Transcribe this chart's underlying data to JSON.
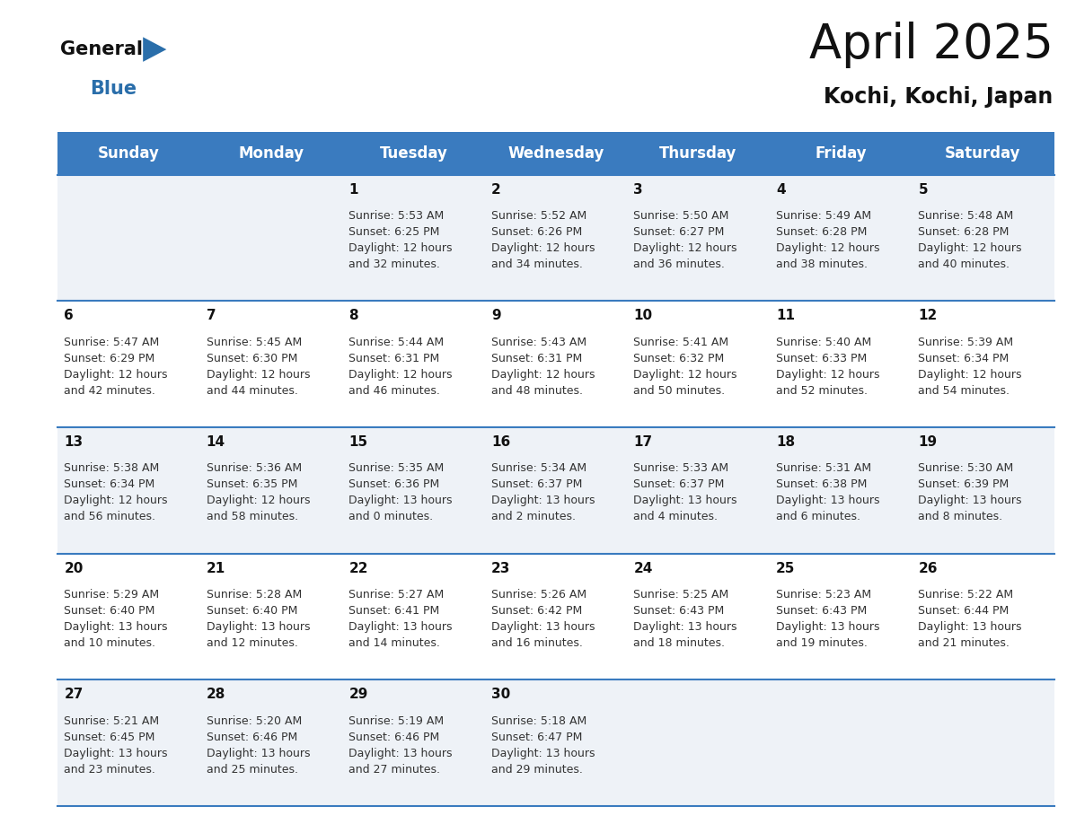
{
  "title": "April 2025",
  "subtitle": "Kochi, Kochi, Japan",
  "header_bg_color": "#3a7bbf",
  "header_text_color": "#ffffff",
  "cell_bg_row0": "#eef2f7",
  "cell_bg_row1": "#ffffff",
  "cell_bg_row2": "#eef2f7",
  "cell_bg_row3": "#ffffff",
  "cell_bg_row4": "#eef2f7",
  "row_line_color": "#3a7bbf",
  "day_headers": [
    "Sunday",
    "Monday",
    "Tuesday",
    "Wednesday",
    "Thursday",
    "Friday",
    "Saturday"
  ],
  "calendar_data": [
    [
      {
        "day": null,
        "info": null
      },
      {
        "day": null,
        "info": null
      },
      {
        "day": "1",
        "info": "Sunrise: 5:53 AM\nSunset: 6:25 PM\nDaylight: 12 hours\nand 32 minutes."
      },
      {
        "day": "2",
        "info": "Sunrise: 5:52 AM\nSunset: 6:26 PM\nDaylight: 12 hours\nand 34 minutes."
      },
      {
        "day": "3",
        "info": "Sunrise: 5:50 AM\nSunset: 6:27 PM\nDaylight: 12 hours\nand 36 minutes."
      },
      {
        "day": "4",
        "info": "Sunrise: 5:49 AM\nSunset: 6:28 PM\nDaylight: 12 hours\nand 38 minutes."
      },
      {
        "day": "5",
        "info": "Sunrise: 5:48 AM\nSunset: 6:28 PM\nDaylight: 12 hours\nand 40 minutes."
      }
    ],
    [
      {
        "day": "6",
        "info": "Sunrise: 5:47 AM\nSunset: 6:29 PM\nDaylight: 12 hours\nand 42 minutes."
      },
      {
        "day": "7",
        "info": "Sunrise: 5:45 AM\nSunset: 6:30 PM\nDaylight: 12 hours\nand 44 minutes."
      },
      {
        "day": "8",
        "info": "Sunrise: 5:44 AM\nSunset: 6:31 PM\nDaylight: 12 hours\nand 46 minutes."
      },
      {
        "day": "9",
        "info": "Sunrise: 5:43 AM\nSunset: 6:31 PM\nDaylight: 12 hours\nand 48 minutes."
      },
      {
        "day": "10",
        "info": "Sunrise: 5:41 AM\nSunset: 6:32 PM\nDaylight: 12 hours\nand 50 minutes."
      },
      {
        "day": "11",
        "info": "Sunrise: 5:40 AM\nSunset: 6:33 PM\nDaylight: 12 hours\nand 52 minutes."
      },
      {
        "day": "12",
        "info": "Sunrise: 5:39 AM\nSunset: 6:34 PM\nDaylight: 12 hours\nand 54 minutes."
      }
    ],
    [
      {
        "day": "13",
        "info": "Sunrise: 5:38 AM\nSunset: 6:34 PM\nDaylight: 12 hours\nand 56 minutes."
      },
      {
        "day": "14",
        "info": "Sunrise: 5:36 AM\nSunset: 6:35 PM\nDaylight: 12 hours\nand 58 minutes."
      },
      {
        "day": "15",
        "info": "Sunrise: 5:35 AM\nSunset: 6:36 PM\nDaylight: 13 hours\nand 0 minutes."
      },
      {
        "day": "16",
        "info": "Sunrise: 5:34 AM\nSunset: 6:37 PM\nDaylight: 13 hours\nand 2 minutes."
      },
      {
        "day": "17",
        "info": "Sunrise: 5:33 AM\nSunset: 6:37 PM\nDaylight: 13 hours\nand 4 minutes."
      },
      {
        "day": "18",
        "info": "Sunrise: 5:31 AM\nSunset: 6:38 PM\nDaylight: 13 hours\nand 6 minutes."
      },
      {
        "day": "19",
        "info": "Sunrise: 5:30 AM\nSunset: 6:39 PM\nDaylight: 13 hours\nand 8 minutes."
      }
    ],
    [
      {
        "day": "20",
        "info": "Sunrise: 5:29 AM\nSunset: 6:40 PM\nDaylight: 13 hours\nand 10 minutes."
      },
      {
        "day": "21",
        "info": "Sunrise: 5:28 AM\nSunset: 6:40 PM\nDaylight: 13 hours\nand 12 minutes."
      },
      {
        "day": "22",
        "info": "Sunrise: 5:27 AM\nSunset: 6:41 PM\nDaylight: 13 hours\nand 14 minutes."
      },
      {
        "day": "23",
        "info": "Sunrise: 5:26 AM\nSunset: 6:42 PM\nDaylight: 13 hours\nand 16 minutes."
      },
      {
        "day": "24",
        "info": "Sunrise: 5:25 AM\nSunset: 6:43 PM\nDaylight: 13 hours\nand 18 minutes."
      },
      {
        "day": "25",
        "info": "Sunrise: 5:23 AM\nSunset: 6:43 PM\nDaylight: 13 hours\nand 19 minutes."
      },
      {
        "day": "26",
        "info": "Sunrise: 5:22 AM\nSunset: 6:44 PM\nDaylight: 13 hours\nand 21 minutes."
      }
    ],
    [
      {
        "day": "27",
        "info": "Sunrise: 5:21 AM\nSunset: 6:45 PM\nDaylight: 13 hours\nand 23 minutes."
      },
      {
        "day": "28",
        "info": "Sunrise: 5:20 AM\nSunset: 6:46 PM\nDaylight: 13 hours\nand 25 minutes."
      },
      {
        "day": "29",
        "info": "Sunrise: 5:19 AM\nSunset: 6:46 PM\nDaylight: 13 hours\nand 27 minutes."
      },
      {
        "day": "30",
        "info": "Sunrise: 5:18 AM\nSunset: 6:47 PM\nDaylight: 13 hours\nand 29 minutes."
      },
      {
        "day": null,
        "info": null
      },
      {
        "day": null,
        "info": null
      },
      {
        "day": null,
        "info": null
      }
    ]
  ],
  "logo_general_color": "#111111",
  "logo_blue_color": "#2a6eaa",
  "title_fontsize": 38,
  "subtitle_fontsize": 17,
  "header_fontsize": 12,
  "day_num_fontsize": 11,
  "info_fontsize": 9,
  "bg_color": "#ffffff"
}
